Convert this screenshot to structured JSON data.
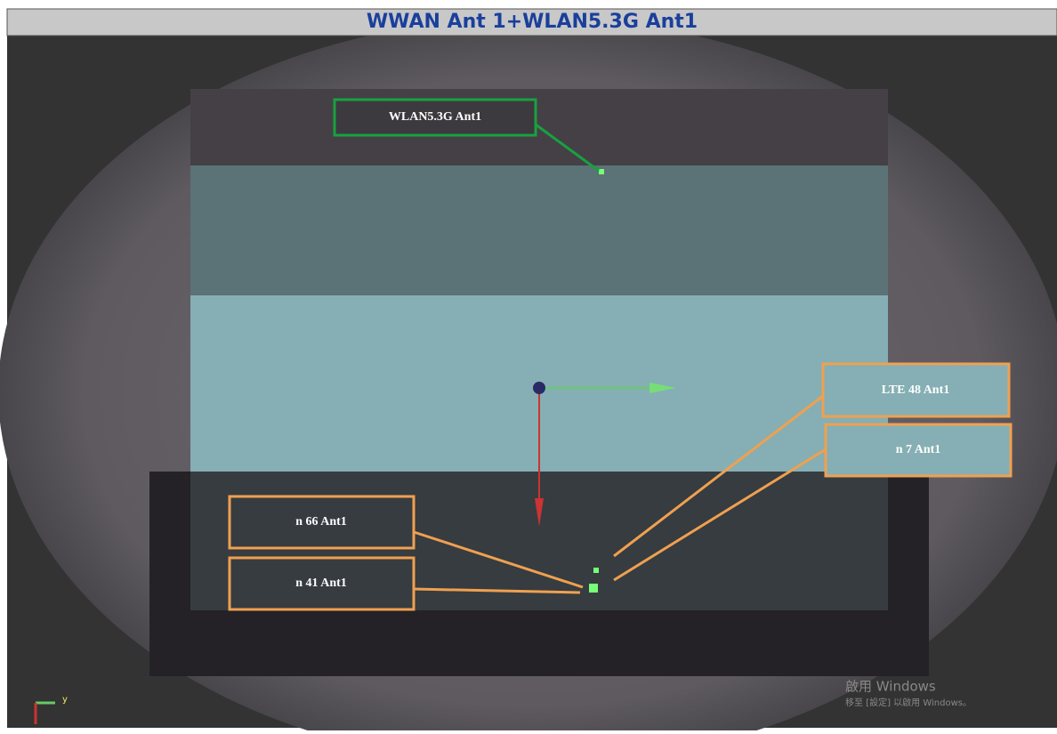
{
  "header": {
    "title": "WWAN Ant 1+WLAN5.3G Ant1"
  },
  "labels": [
    "WLAN5.3G Ant1",
    "LTE  48 Ant1",
    "n  7 Ant1",
    "n  66 Ant1",
    "n  41 Ant1"
  ],
  "axis_label": "y",
  "watermark": {
    "line1": "啟用 Windows",
    "line2": "移至 [設定] 以啟用 Windows。"
  }
}
